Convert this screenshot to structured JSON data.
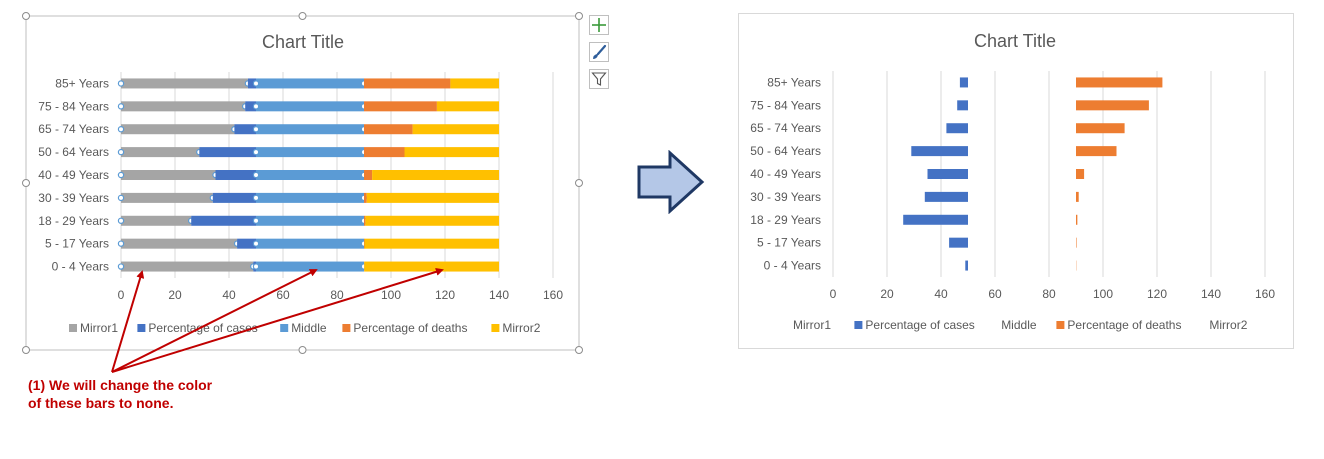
{
  "categories": [
    "85+ Years",
    "75 - 84 Years",
    "65 - 74 Years",
    "50 - 64 Years",
    "40 - 49 Years",
    "30 - 39 Years",
    "18 - 29 Years",
    "5 - 17 Years",
    "0 - 4 Years"
  ],
  "x_ticks": [
    "0",
    "20",
    "40",
    "60",
    "80",
    "100",
    "120",
    "140",
    "160"
  ],
  "annotation": "(1) We will change the color of these bars to none.",
  "colors": {
    "mirror1": "#a5a5a5",
    "cases": "#4472c4",
    "middle": "#5b9bd5",
    "deaths": "#ed7d31",
    "mirror2": "#ffc000",
    "annotation": "#c00000",
    "arrow_fill": "#b4c7e7",
    "arrow_stroke": "#1f3864"
  },
  "chart_data": [
    {
      "type": "bar",
      "orientation": "horizontal",
      "stacked": true,
      "title": "Chart Title",
      "categories": [
        "85+ Years",
        "75 - 84 Years",
        "65 - 74 Years",
        "50 - 64 Years",
        "40 - 49 Years",
        "30 - 39 Years",
        "18 - 29 Years",
        "5 - 17 Years",
        "0 - 4 Years"
      ],
      "series": [
        {
          "name": "Mirror1",
          "color": "#a5a5a5",
          "values": [
            47,
            46,
            42,
            29,
            35,
            34,
            26,
            43,
            49
          ]
        },
        {
          "name": "Percentage of cases",
          "color": "#4472c4",
          "values": [
            3,
            4,
            8,
            21,
            15,
            16,
            24,
            7,
            1
          ]
        },
        {
          "name": "Middle",
          "color": "#5b9bd5",
          "values": [
            40,
            40,
            40,
            40,
            40,
            40,
            40,
            40,
            40
          ]
        },
        {
          "name": "Percentage of deaths",
          "color": "#ed7d31",
          "values": [
            32,
            27,
            18,
            15,
            3,
            1,
            0.5,
            0.2,
            0.1
          ]
        },
        {
          "name": "Mirror2",
          "color": "#ffc000",
          "values": [
            18,
            23,
            32,
            35,
            47,
            49,
            49.5,
            49.8,
            49.9
          ]
        }
      ],
      "xlim": [
        0,
        160
      ],
      "grid": true,
      "legend": "bottom"
    },
    {
      "type": "bar",
      "orientation": "horizontal",
      "stacked": true,
      "title": "Chart Title",
      "categories": [
        "85+ Years",
        "75 - 84 Years",
        "65 - 74 Years",
        "50 - 64 Years",
        "40 - 49 Years",
        "30 - 39 Years",
        "18 - 29 Years",
        "5 - 17 Years",
        "0 - 4 Years"
      ],
      "series": [
        {
          "name": "Mirror1",
          "color": "none",
          "values": [
            47,
            46,
            42,
            29,
            35,
            34,
            26,
            43,
            49
          ]
        },
        {
          "name": "Percentage of cases",
          "color": "#4472c4",
          "values": [
            3,
            4,
            8,
            21,
            15,
            16,
            24,
            7,
            1
          ]
        },
        {
          "name": "Middle",
          "color": "none",
          "values": [
            40,
            40,
            40,
            40,
            40,
            40,
            40,
            40,
            40
          ]
        },
        {
          "name": "Percentage of deaths",
          "color": "#ed7d31",
          "values": [
            32,
            27,
            18,
            15,
            3,
            1,
            0.5,
            0.2,
            0.1
          ]
        },
        {
          "name": "Mirror2",
          "color": "none",
          "values": [
            18,
            23,
            32,
            35,
            47,
            49,
            49.5,
            49.8,
            49.9
          ]
        }
      ],
      "xlim": [
        0,
        160
      ],
      "grid": true,
      "legend": "bottom"
    }
  ]
}
